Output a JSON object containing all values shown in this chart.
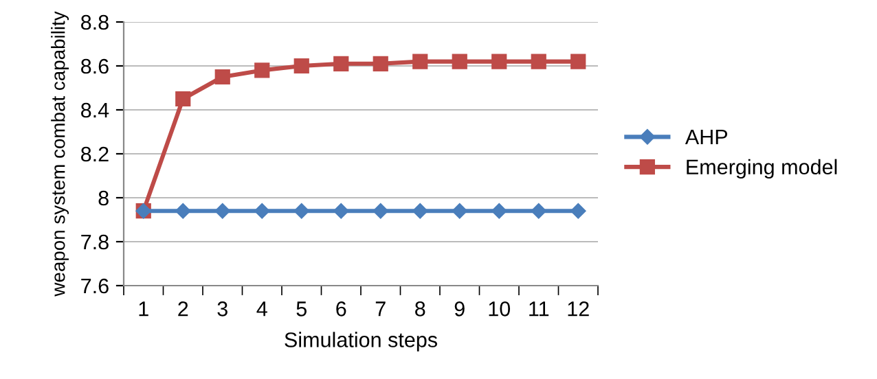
{
  "chart_data": {
    "type": "line",
    "xlabel": "Simulation steps",
    "ylabel": "weapon system combat capability",
    "categories": [
      "1",
      "2",
      "3",
      "4",
      "5",
      "6",
      "7",
      "8",
      "9",
      "10",
      "11",
      "12"
    ],
    "series": [
      {
        "name": "AHP",
        "color": "#4a7ebb",
        "marker": "diamond",
        "values": [
          7.94,
          7.94,
          7.94,
          7.94,
          7.94,
          7.94,
          7.94,
          7.94,
          7.94,
          7.94,
          7.94,
          7.94
        ]
      },
      {
        "name": "Emerging model",
        "color": "#be4b48",
        "marker": "square",
        "values": [
          7.94,
          8.45,
          8.55,
          8.58,
          8.6,
          8.61,
          8.61,
          8.62,
          8.62,
          8.62,
          8.62,
          8.62
        ]
      }
    ],
    "ylim": [
      7.6,
      8.8
    ],
    "yticks": [
      7.6,
      7.8,
      8,
      8.2,
      8.4,
      8.6,
      8.8
    ],
    "grid": "y",
    "legend": "right"
  }
}
